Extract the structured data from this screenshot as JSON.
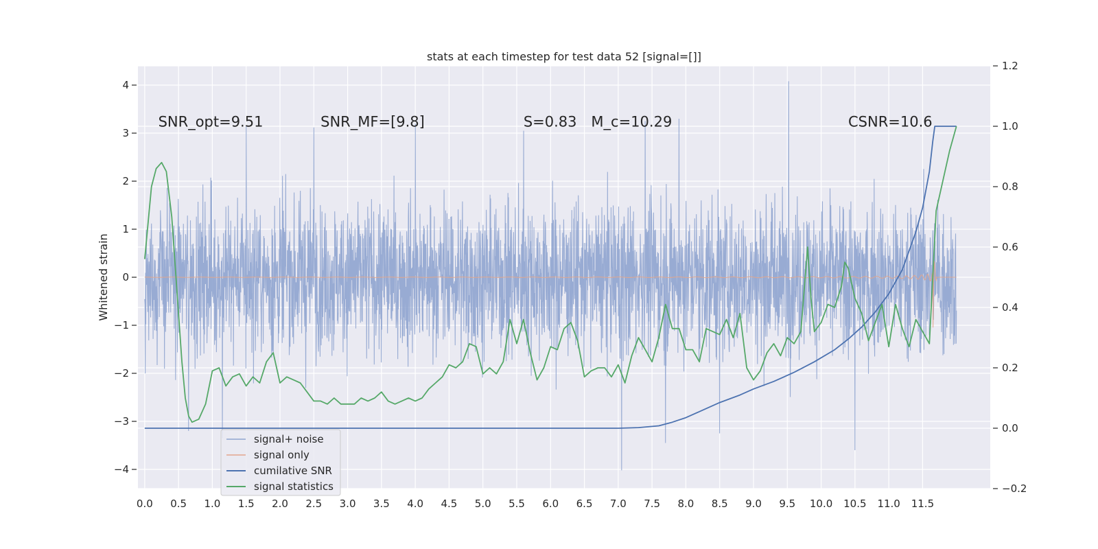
{
  "chart_data": {
    "type": "line",
    "title": "stats at each timestep for test data 52 [signal=[]]",
    "ylabel": "Whitened strain",
    "xlabel": "",
    "xlim": [
      -0.1,
      12.5
    ],
    "ylim": [
      -4.4,
      4.4
    ],
    "y2lim": [
      -0.2,
      1.2
    ],
    "grid": true,
    "x_ticks": [
      0.0,
      0.5,
      1.0,
      1.5,
      2.0,
      2.5,
      3.0,
      3.5,
      4.0,
      4.5,
      5.0,
      5.5,
      6.0,
      6.5,
      7.0,
      7.5,
      8.0,
      8.5,
      9.0,
      9.5,
      10.0,
      10.5,
      11.0,
      11.5
    ],
    "x_tick_labels": [
      "0.0",
      "0.5",
      "1.0",
      "1.5",
      "2.0",
      "2.5",
      "3.0",
      "3.5",
      "4.0",
      "4.5",
      "5.0",
      "5.5",
      "6.0",
      "6.5",
      "7.0",
      "7.5",
      "8.0",
      "8.5",
      "9.0",
      "9.5",
      "10.0",
      "10.5",
      "11.0",
      "11.5"
    ],
    "y_ticks": [
      4,
      3,
      2,
      1,
      0,
      -1,
      -2,
      -3,
      -4
    ],
    "y_tick_labels": [
      "4",
      "3",
      "2",
      "1",
      "0",
      "−1",
      "−2",
      "−3",
      "−4"
    ],
    "y2_ticks": [
      1.2,
      1.0,
      0.8,
      0.6,
      0.4,
      0.2,
      0.0,
      -0.2
    ],
    "y2_tick_labels": [
      "1.2",
      "1.0",
      "0.8",
      "0.6",
      "0.4",
      "0.2",
      "0.0",
      "−0.2"
    ],
    "annotations": [
      {
        "text": "SNR_opt=9.51",
        "x": 0.2,
        "y": 3.25
      },
      {
        "text": "SNR_MF=[9.8]",
        "x": 2.6,
        "y": 3.25
      },
      {
        "text": "S=0.83",
        "x": 5.6,
        "y": 3.25
      },
      {
        "text": "M_c=10.29",
        "x": 6.6,
        "y": 3.25
      },
      {
        "text": "CSNR=10.6",
        "x": 10.4,
        "y": 3.25
      }
    ],
    "legend": {
      "placement": "lower-left",
      "entries": [
        {
          "label": "signal+ noise",
          "color": "#8fa4cf"
        },
        {
          "label": "signal only",
          "color": "#e2a58c"
        },
        {
          "label": "cumilative SNR",
          "color": "#4c72b0"
        },
        {
          "label": "signal statistics",
          "color": "#55a868"
        }
      ]
    },
    "series": [
      {
        "name": "signal+ noise",
        "axis": "left",
        "description": "whitened noisy strain, roughly between -2 and 2.5 with spikes up to 4.1 and down to -4.0",
        "x_range": [
          0.0,
          12.0
        ],
        "spikes": [
          [
            9.52,
            4.08
          ],
          [
            7.05,
            -4.02
          ],
          [
            4.0,
            -3.45
          ],
          [
            10.5,
            -3.6
          ],
          [
            7.7,
            -3.45
          ],
          [
            1.5,
            3.15
          ],
          [
            4.0,
            3.2
          ],
          [
            2.5,
            3.12
          ],
          [
            7.9,
            3.3
          ],
          [
            7.4,
            3.25
          ],
          [
            5.6,
            3.05
          ],
          [
            8.5,
            -3.25
          ],
          [
            1.15,
            -3.35
          ],
          [
            0.65,
            -3.2
          ]
        ]
      },
      {
        "name": "signal only",
        "axis": "left",
        "description": "chirp whose amplitude grows toward merger near t = 11.65",
        "x_range": [
          0.0,
          12.0
        ],
        "peak": [
          11.65,
          1.0
        ],
        "trough": [
          11.65,
          -1.45
        ]
      },
      {
        "name": "cumilative SNR",
        "axis": "right",
        "x": [
          0.0,
          1.0,
          2.0,
          3.0,
          4.0,
          5.0,
          6.0,
          7.0,
          7.3,
          7.6,
          7.8,
          8.0,
          8.2,
          8.5,
          8.8,
          9.0,
          9.3,
          9.6,
          9.9,
          10.2,
          10.4,
          10.6,
          10.8,
          11.0,
          11.2,
          11.4,
          11.5,
          11.6,
          11.65,
          11.68,
          12.0
        ],
        "values": [
          0.0,
          0.0,
          0.0,
          0.0,
          0.0,
          0.0,
          0.0,
          0.0,
          0.002,
          0.008,
          0.02,
          0.035,
          0.055,
          0.085,
          0.11,
          0.13,
          0.155,
          0.185,
          0.22,
          0.26,
          0.295,
          0.335,
          0.385,
          0.445,
          0.525,
          0.65,
          0.73,
          0.85,
          0.95,
          1.0,
          1.0
        ]
      },
      {
        "name": "signal statistics",
        "axis": "right",
        "x": [
          0.0,
          0.1,
          0.17,
          0.25,
          0.32,
          0.4,
          0.5,
          0.55,
          0.6,
          0.65,
          0.7,
          0.8,
          0.9,
          1.0,
          1.1,
          1.2,
          1.3,
          1.4,
          1.5,
          1.6,
          1.7,
          1.8,
          1.9,
          1.95,
          2.0,
          2.1,
          2.2,
          2.3,
          2.4,
          2.5,
          2.6,
          2.7,
          2.8,
          2.9,
          3.0,
          3.1,
          3.2,
          3.3,
          3.4,
          3.5,
          3.6,
          3.7,
          3.8,
          3.9,
          4.0,
          4.1,
          4.2,
          4.3,
          4.4,
          4.5,
          4.6,
          4.7,
          4.8,
          4.9,
          5.0,
          5.1,
          5.2,
          5.3,
          5.4,
          5.5,
          5.6,
          5.7,
          5.8,
          5.9,
          6.0,
          6.1,
          6.2,
          6.3,
          6.4,
          6.5,
          6.6,
          6.7,
          6.8,
          6.9,
          7.0,
          7.1,
          7.2,
          7.3,
          7.4,
          7.5,
          7.6,
          7.7,
          7.8,
          7.9,
          8.0,
          8.1,
          8.2,
          8.3,
          8.4,
          8.5,
          8.6,
          8.7,
          8.8,
          8.9,
          9.0,
          9.1,
          9.2,
          9.3,
          9.4,
          9.5,
          9.6,
          9.7,
          9.8,
          9.85,
          9.9,
          10.0,
          10.1,
          10.2,
          10.3,
          10.35,
          10.4,
          10.5,
          10.6,
          10.7,
          10.8,
          10.9,
          11.0,
          11.1,
          11.2,
          11.3,
          11.4,
          11.5,
          11.6,
          11.7,
          11.8,
          11.9,
          12.0
        ],
        "values": [
          0.56,
          0.8,
          0.86,
          0.88,
          0.85,
          0.7,
          0.38,
          0.22,
          0.1,
          0.04,
          0.02,
          0.03,
          0.08,
          0.19,
          0.2,
          0.14,
          0.17,
          0.18,
          0.14,
          0.17,
          0.15,
          0.22,
          0.25,
          0.2,
          0.15,
          0.17,
          0.16,
          0.15,
          0.12,
          0.09,
          0.09,
          0.08,
          0.1,
          0.08,
          0.08,
          0.08,
          0.1,
          0.09,
          0.1,
          0.12,
          0.09,
          0.08,
          0.09,
          0.1,
          0.09,
          0.1,
          0.13,
          0.15,
          0.17,
          0.21,
          0.2,
          0.22,
          0.28,
          0.27,
          0.18,
          0.2,
          0.18,
          0.22,
          0.36,
          0.28,
          0.36,
          0.25,
          0.16,
          0.2,
          0.27,
          0.26,
          0.33,
          0.35,
          0.29,
          0.17,
          0.19,
          0.2,
          0.2,
          0.17,
          0.21,
          0.15,
          0.24,
          0.3,
          0.26,
          0.22,
          0.3,
          0.41,
          0.33,
          0.33,
          0.26,
          0.26,
          0.22,
          0.33,
          0.32,
          0.31,
          0.36,
          0.3,
          0.38,
          0.2,
          0.16,
          0.19,
          0.25,
          0.28,
          0.24,
          0.3,
          0.28,
          0.32,
          0.6,
          0.43,
          0.32,
          0.35,
          0.41,
          0.4,
          0.47,
          0.55,
          0.53,
          0.43,
          0.38,
          0.29,
          0.35,
          0.41,
          0.27,
          0.41,
          0.33,
          0.27,
          0.36,
          0.32,
          0.28,
          0.72,
          0.82,
          0.92,
          1.0
        ]
      }
    ]
  }
}
